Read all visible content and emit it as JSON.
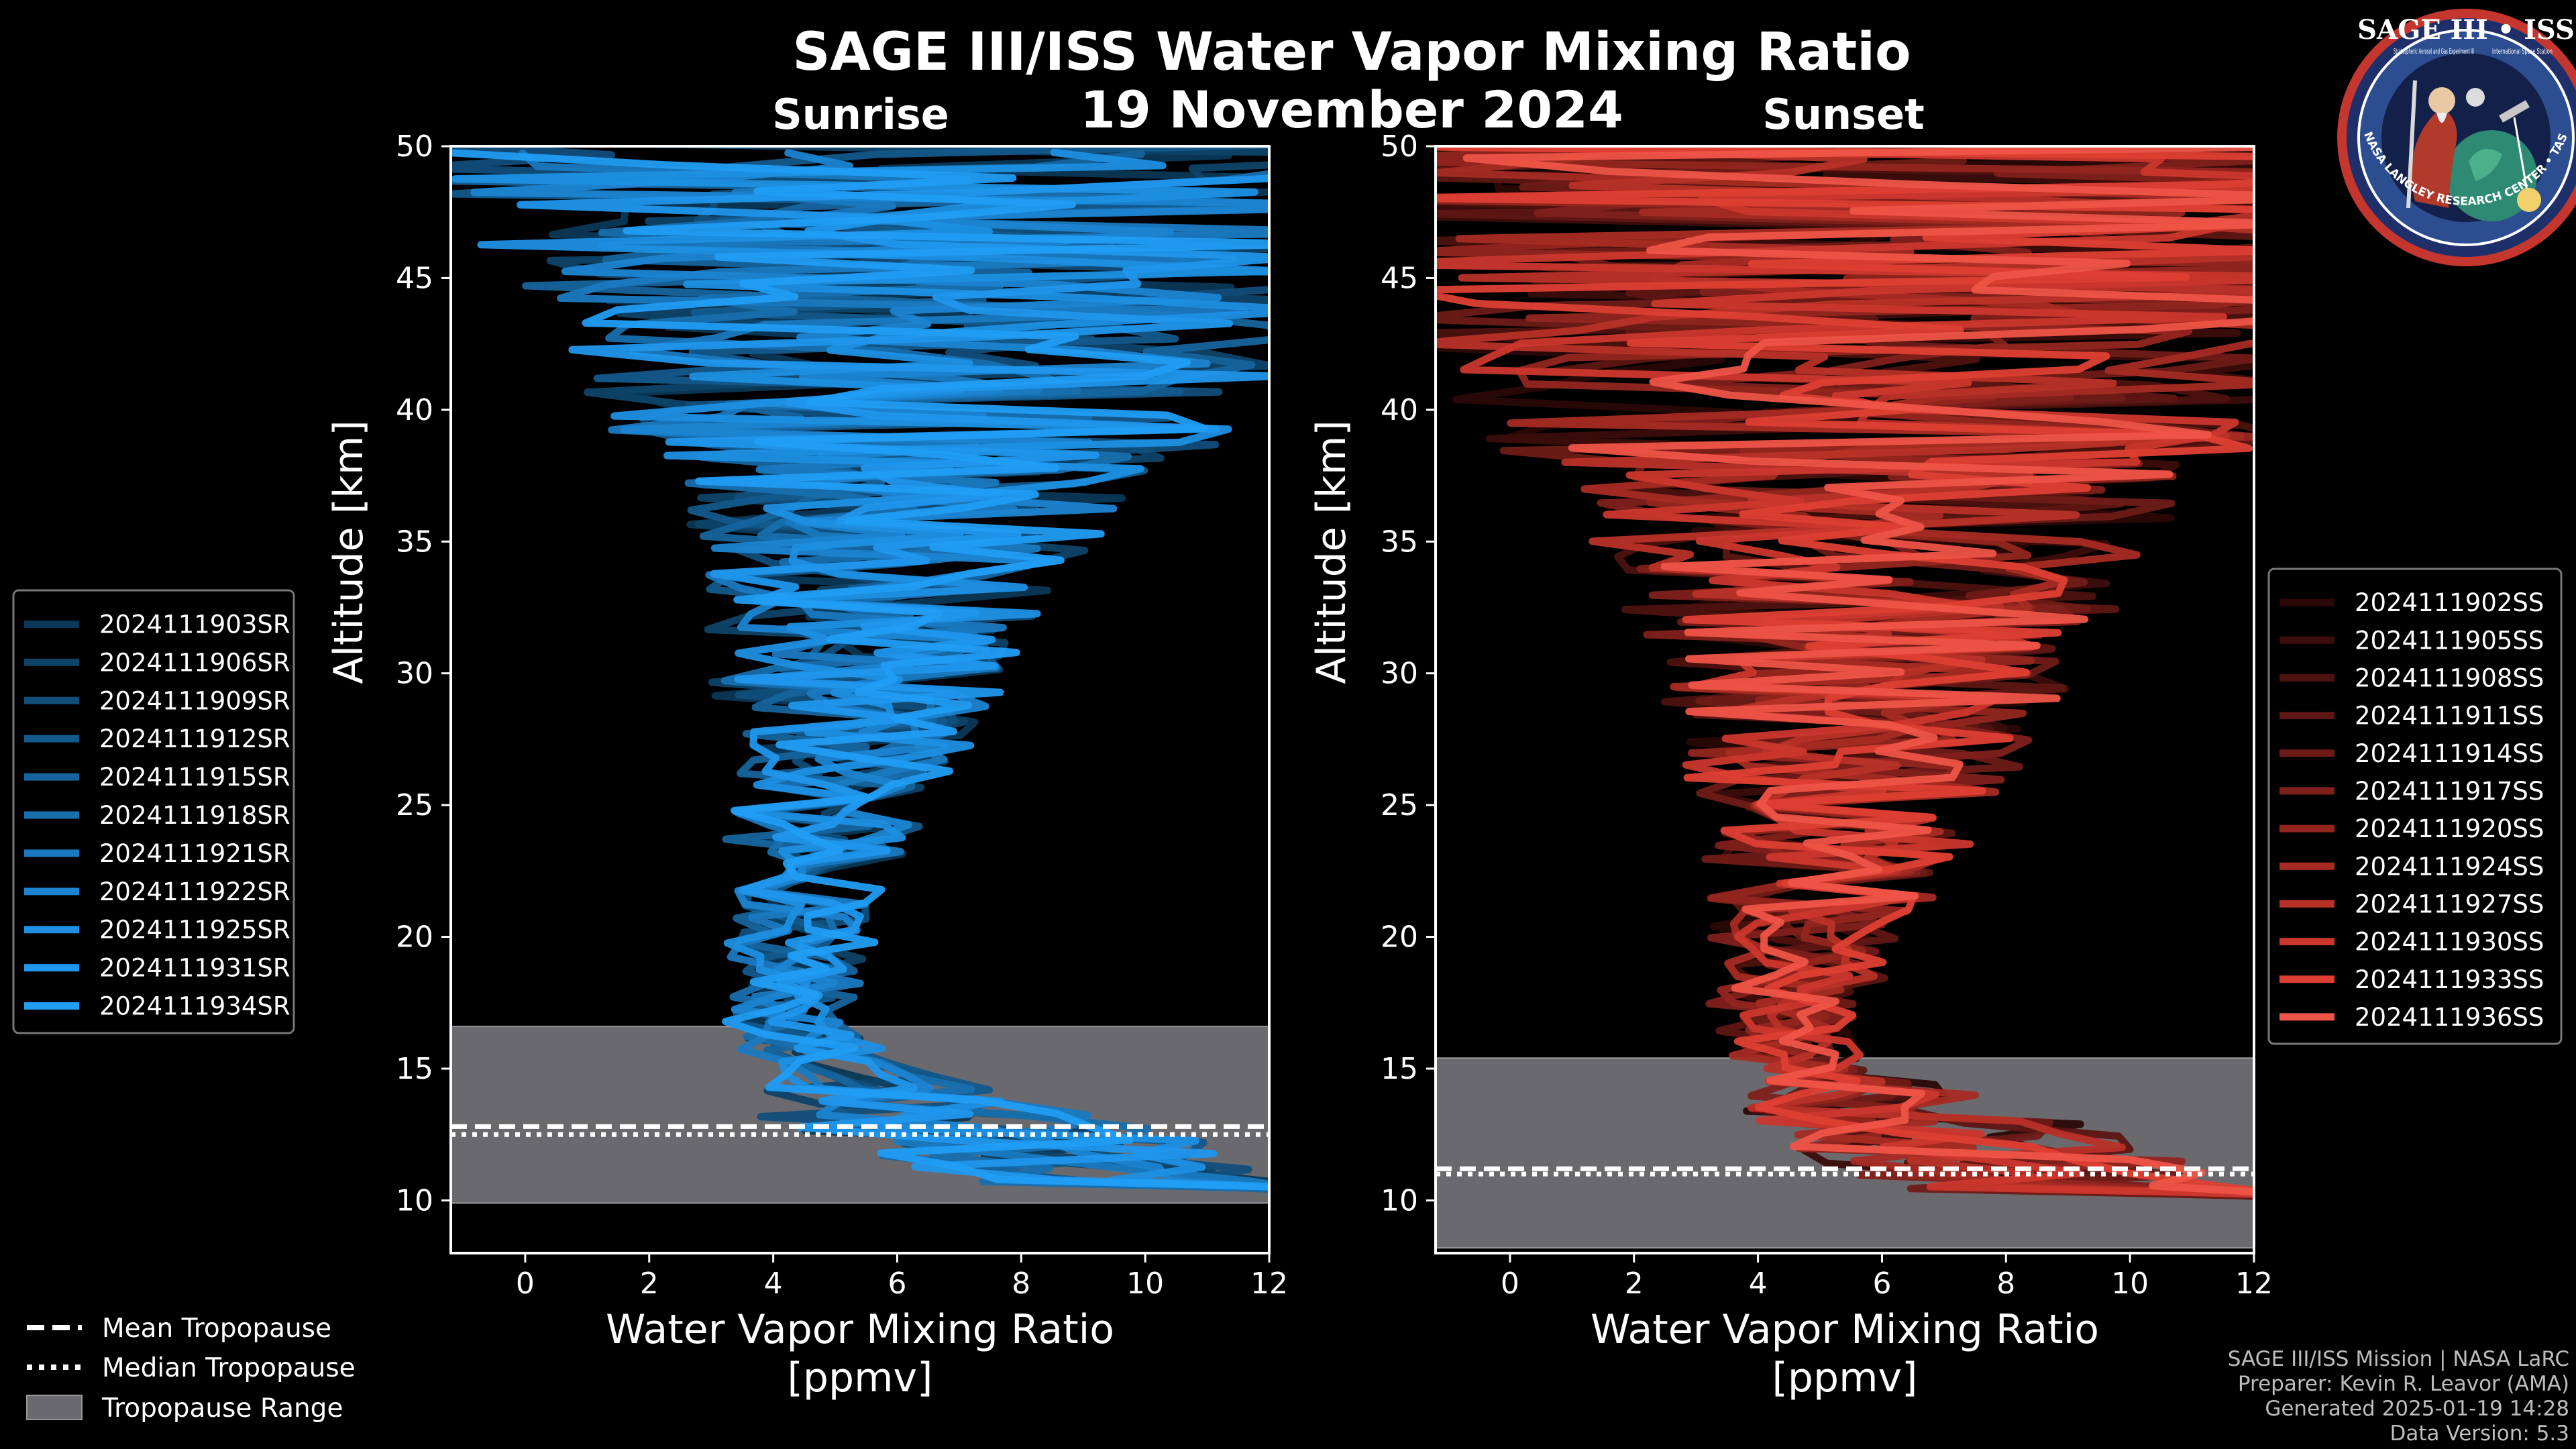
{
  "figure": {
    "title": "SAGE III/ISS Water Vapor Mixing Ratio",
    "date": "19 November 2024",
    "sunrise_label": "Sunrise",
    "sunset_label": "Sunset",
    "credits": [
      "SAGE III/ISS Mission | NASA LaRC",
      "Preparer: Kevin R. Leavor (AMA)",
      "Generated 2025-01-19 14:28",
      "Data Version: 5.3"
    ],
    "logo": {
      "title": "SAGE III • ISS",
      "subtitle_left": "Stratospheric Aerosol and Gas Experiment III",
      "subtitle_right": "International Space Station",
      "ring_text": "BALL • NASA LANGLEY RESEARCH CENTER • TAS-I • ESA"
    },
    "tropopause_legend": [
      {
        "label": "Mean Tropopause",
        "style": "dashed"
      },
      {
        "label": "Median Tropopause",
        "style": "dotted"
      },
      {
        "label": "Tropopause Range",
        "style": "patch"
      }
    ]
  },
  "chart_data": [
    {
      "type": "line",
      "panel": "sunrise",
      "title": "Sunrise",
      "xlabel": "Water Vapor Mixing Ratio [ppmv]",
      "xlabel_lines": [
        "Water Vapor Mixing Ratio",
        "[ppmv]"
      ],
      "ylabel": "Altitude [km]",
      "xlim": [
        -1.2,
        12
      ],
      "ylim": [
        8,
        50
      ],
      "xticks": [
        0,
        2,
        4,
        6,
        8,
        10,
        12
      ],
      "yticks": [
        10,
        15,
        20,
        25,
        30,
        35,
        40,
        45,
        50
      ],
      "tropopause": {
        "min": 9.9,
        "max": 16.6,
        "mean": 12.8,
        "median": 12.5
      },
      "series_colors": [
        "#0b3856",
        "#0e4368",
        "#114e7a",
        "#13598b",
        "#16649d",
        "#186fae",
        "#1a79c0",
        "#1c84d1",
        "#1e8fe2",
        "#2096ec",
        "#219df4"
      ],
      "series": [
        {
          "name": "2024111903SR"
        },
        {
          "name": "2024111906SR"
        },
        {
          "name": "2024111909SR"
        },
        {
          "name": "2024111912SR"
        },
        {
          "name": "2024111915SR"
        },
        {
          "name": "2024111918SR"
        },
        {
          "name": "2024111921SR"
        },
        {
          "name": "2024111922SR"
        },
        {
          "name": "2024111925SR"
        },
        {
          "name": "2024111931SR"
        },
        {
          "name": "2024111934SR"
        }
      ],
      "profile_envelope": [
        {
          "alt": 10.5,
          "center": 10.0,
          "spread": 2.5
        },
        {
          "alt": 12.0,
          "center": 8.0,
          "spread": 3.2
        },
        {
          "alt": 13.5,
          "center": 6.5,
          "spread": 2.8
        },
        {
          "alt": 15.0,
          "center": 4.8,
          "spread": 1.3
        },
        {
          "alt": 17.0,
          "center": 4.2,
          "spread": 0.9
        },
        {
          "alt": 20.0,
          "center": 4.4,
          "spread": 1.1
        },
        {
          "alt": 25.0,
          "center": 5.0,
          "spread": 1.6
        },
        {
          "alt": 30.0,
          "center": 5.5,
          "spread": 2.4
        },
        {
          "alt": 35.0,
          "center": 6.0,
          "spread": 3.3
        },
        {
          "alt": 40.0,
          "center": 6.4,
          "spread": 4.5
        },
        {
          "alt": 45.0,
          "center": 6.6,
          "spread": 6.0
        },
        {
          "alt": 50.0,
          "center": 6.8,
          "spread": 8.0
        }
      ]
    },
    {
      "type": "line",
      "panel": "sunset",
      "title": "Sunset",
      "xlabel": "Water Vapor Mixing Ratio [ppmv]",
      "xlabel_lines": [
        "Water Vapor Mixing Ratio",
        "[ppmv]"
      ],
      "ylabel": "Altitude [km]",
      "xlim": [
        -1.2,
        12
      ],
      "ylim": [
        8,
        50
      ],
      "xticks": [
        0,
        2,
        4,
        6,
        8,
        10,
        12
      ],
      "yticks": [
        10,
        15,
        20,
        25,
        30,
        35,
        40,
        45,
        50
      ],
      "tropopause": {
        "min": 8.2,
        "max": 15.4,
        "mean": 11.2,
        "median": 11.0
      },
      "series_colors": [
        "#2a0807",
        "#3b0d0b",
        "#4c120f",
        "#5d1613",
        "#6e1b17",
        "#80201b",
        "#92261f",
        "#a52b23",
        "#b83128",
        "#cb372d",
        "#de3f33",
        "#ee5447"
      ],
      "series": [
        {
          "name": "2024111902SS"
        },
        {
          "name": "2024111905SS"
        },
        {
          "name": "2024111908SS"
        },
        {
          "name": "2024111911SS"
        },
        {
          "name": "2024111914SS"
        },
        {
          "name": "2024111917SS"
        },
        {
          "name": "2024111920SS"
        },
        {
          "name": "2024111924SS"
        },
        {
          "name": "2024111927SS"
        },
        {
          "name": "2024111930SS"
        },
        {
          "name": "2024111933SS"
        },
        {
          "name": "2024111936SS"
        }
      ],
      "profile_envelope": [
        {
          "alt": 10.2,
          "center": 9.5,
          "spread": 3.0
        },
        {
          "alt": 11.5,
          "center": 8.0,
          "spread": 3.3
        },
        {
          "alt": 13.0,
          "center": 6.5,
          "spread": 2.8
        },
        {
          "alt": 15.0,
          "center": 4.6,
          "spread": 1.0
        },
        {
          "alt": 17.0,
          "center": 4.5,
          "spread": 1.1
        },
        {
          "alt": 20.0,
          "center": 4.8,
          "spread": 1.5
        },
        {
          "alt": 25.0,
          "center": 5.4,
          "spread": 2.4
        },
        {
          "alt": 30.0,
          "center": 5.8,
          "spread": 3.4
        },
        {
          "alt": 35.0,
          "center": 6.0,
          "spread": 4.6
        },
        {
          "alt": 40.0,
          "center": 6.0,
          "spread": 6.0
        },
        {
          "alt": 45.0,
          "center": 6.2,
          "spread": 7.6
        },
        {
          "alt": 50.0,
          "center": 6.4,
          "spread": 9.0
        }
      ]
    }
  ]
}
